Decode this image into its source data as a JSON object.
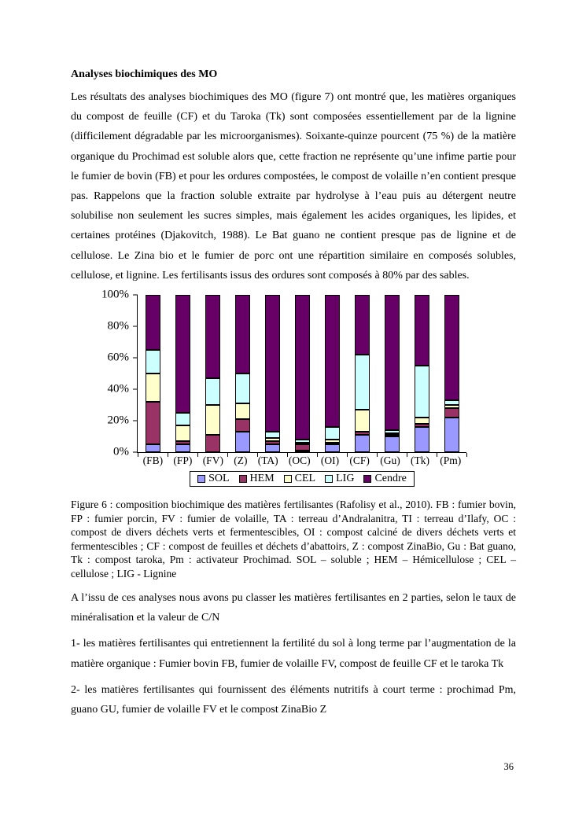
{
  "page": {
    "number": "36"
  },
  "heading": "Analyses biochimiques des MO",
  "paragraphs": {
    "p1": "Les résultats des analyses biochimiques des MO (figure 7) ont montré que, les matières organiques du compost de feuille (CF) et du Taroka (Tk) sont composées essentiellement par de la lignine (difficilement dégradable par les microorganismes). Soixante-quinze pourcent (75 %) de la matière organique du Prochimad est soluble alors que, cette fraction ne représente qu’une infime partie pour le fumier de bovin (FB) et pour les ordures compostées, le compost de volaille n’en contient presque pas. Rappelons que la fraction soluble extraite par hydrolyse à l’eau puis au détergent neutre solubilise non seulement les sucres simples, mais également les acides organiques, les lipides, et certaines protéines (Djakovitch, 1988). Le Bat guano ne contient presque pas de lignine et de cellulose. Le Zina bio et le fumier de porc ont une répartition similaire en composés solubles, cellulose, et lignine. Les fertilisants issus des ordures sont composés à 80% par des sables.",
    "p2": "A l’issu de ces analyses nous avons pu classer les matières fertilisantes en 2 parties, selon le taux de minéralisation et la valeur de C/N",
    "p3": "1- les matières fertilisantes qui entretiennent la fertilité du sol à long terme par l’augmentation de la matière organique : Fumier bovin FB, fumier de volaille FV, compost de feuille CF et le taroka Tk",
    "p4": "2- les matières fertilisantes qui fournissent des éléments nutritifs à court terme : prochimad Pm, guano GU, fumier de volaille FV et le compost ZinaBio Z"
  },
  "figure_caption": "Figure 6 : composition biochimique des matières fertilisantes (Rafolisy et al., 2010). FB : fumier bovin, FP : fumier porcin, FV : fumier de volaille, TA : terreau d’Andralanitra, TI : terreau d’Ilafy, OC : compost de divers déchets verts et fermentescibles, OI : compost calciné de divers déchets verts et fermentescibles ; CF : compost de feuilles et déchets d’abattoirs, Z : compost ZinaBio, Gu : Bat guano, Tk : compost taroka, Pm : activateur Prochimad. SOL – soluble ; HEM – Hémicellulose ; CEL – cellulose ; LIG - Lignine",
  "chart_data": {
    "type": "bar",
    "stacked": true,
    "units": "percent",
    "title": "",
    "xlabel": "",
    "ylabel": "",
    "ylim": [
      0,
      100
    ],
    "grid": false,
    "legend_position": "bottom",
    "y_ticks": [
      "0%",
      "20%",
      "40%",
      "60%",
      "80%",
      "100%"
    ],
    "categories": [
      "(FB)",
      "(FP)",
      "(FV)",
      "(Z)",
      "(TA)",
      "(OC)",
      "(OI)",
      "(CF)",
      "(Gu)",
      "(Tk)",
      "(Pm)"
    ],
    "series": [
      {
        "name": "SOL",
        "color": "#9999FF",
        "values": [
          5,
          5,
          0,
          13,
          5,
          1,
          5,
          11,
          10,
          16,
          22
        ]
      },
      {
        "name": "HEM",
        "color": "#993366",
        "values": [
          27,
          2,
          11,
          8,
          2,
          4,
          1,
          2,
          1,
          2,
          6
        ]
      },
      {
        "name": "CEL",
        "color": "#FFFFCC",
        "values": [
          18,
          10,
          19,
          10,
          2,
          1,
          2,
          14,
          1,
          4,
          2
        ]
      },
      {
        "name": "LIG",
        "color": "#CCFFFF",
        "values": [
          15,
          8,
          17,
          19,
          4,
          2,
          8,
          35,
          2,
          33,
          3
        ]
      },
      {
        "name": "Cendre",
        "color": "#660066",
        "values": [
          35,
          75,
          53,
          50,
          87,
          92,
          84,
          38,
          86,
          45,
          67
        ]
      }
    ]
  }
}
